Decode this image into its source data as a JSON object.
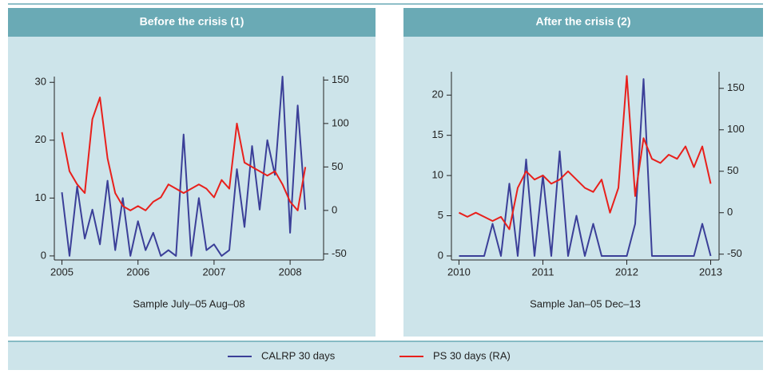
{
  "chart_data": [
    {
      "type": "line",
      "title": "Before the crisis (1)",
      "xlabel": "Sample July–05 Aug–08",
      "x": [
        2005.0,
        2005.1,
        2005.2,
        2005.3,
        2005.4,
        2005.5,
        2005.6,
        2005.7,
        2005.8,
        2005.9,
        2006.0,
        2006.1,
        2006.2,
        2006.3,
        2006.4,
        2006.5,
        2006.6,
        2006.7,
        2006.8,
        2006.9,
        2007.0,
        2007.1,
        2007.2,
        2007.3,
        2007.4,
        2007.5,
        2007.6,
        2007.7,
        2007.8,
        2007.9,
        2008.0,
        2008.1,
        2008.2
      ],
      "series": [
        {
          "name": "CALRP 30 days",
          "color": "#3b3f98",
          "values": [
            11,
            0,
            12,
            3,
            8,
            2,
            13,
            1,
            10,
            0,
            6,
            1,
            4,
            0,
            1,
            0,
            21,
            0,
            10,
            1,
            2,
            0,
            1,
            15,
            5,
            19,
            8,
            20,
            14,
            31,
            4,
            26,
            8
          ]
        },
        {
          "name": "PS 30 days (RA)",
          "color": "#e8201c",
          "axis": "y2",
          "values": [
            90,
            45,
            30,
            20,
            105,
            130,
            60,
            20,
            5,
            0,
            5,
            0,
            10,
            15,
            30,
            25,
            20,
            25,
            30,
            25,
            15,
            35,
            25,
            100,
            55,
            50,
            45,
            40,
            45,
            30,
            10,
            0,
            50
          ]
        }
      ],
      "xlim": [
        2004.9,
        2008.44
      ],
      "xticks": [
        2005,
        2006,
        2007,
        2008
      ],
      "ylim": [
        -0.7,
        31
      ],
      "yticks": [
        0,
        10,
        20,
        30
      ],
      "y2lim": [
        -57,
        154
      ],
      "y2ticks": [
        -50,
        0,
        50,
        100,
        150
      ]
    },
    {
      "type": "line",
      "title": "After the crisis (2)",
      "xlabel": "Sample Jan–05 Dec–13",
      "x": [
        2010.0,
        2010.1,
        2010.2,
        2010.3,
        2010.4,
        2010.5,
        2010.6,
        2010.7,
        2010.8,
        2010.9,
        2011.0,
        2011.1,
        2011.2,
        2011.3,
        2011.4,
        2011.5,
        2011.6,
        2011.7,
        2011.8,
        2011.9,
        2012.0,
        2012.1,
        2012.2,
        2012.3,
        2012.4,
        2012.5,
        2012.6,
        2012.7,
        2012.8,
        2012.9,
        2013.0
      ],
      "series": [
        {
          "color": "#3b3f98",
          "values": [
            0,
            0,
            0,
            0,
            4,
            0,
            9,
            0,
            12,
            0,
            10,
            0,
            13,
            0,
            5,
            0,
            4,
            0,
            0,
            0,
            0,
            4,
            22,
            0,
            0,
            0,
            0,
            0,
            0,
            4,
            0
          ]
        },
        {
          "color": "#e8201c",
          "axis": "y2",
          "values": [
            0,
            -5,
            0,
            -5,
            -10,
            -5,
            -20,
            30,
            50,
            40,
            45,
            35,
            40,
            50,
            40,
            30,
            25,
            40,
            0,
            30,
            165,
            20,
            90,
            65,
            60,
            70,
            65,
            80,
            55,
            80,
            35
          ]
        }
      ],
      "xlim": [
        2009.91,
        2013.1
      ],
      "xticks": [
        2010,
        2011,
        2012,
        2013
      ],
      "ylim": [
        -0.5,
        22.9
      ],
      "yticks": [
        0,
        5,
        10,
        15,
        20
      ],
      "y2lim": [
        -57,
        170
      ],
      "y2ticks": [
        -50,
        0,
        50,
        100,
        150
      ]
    }
  ]
}
